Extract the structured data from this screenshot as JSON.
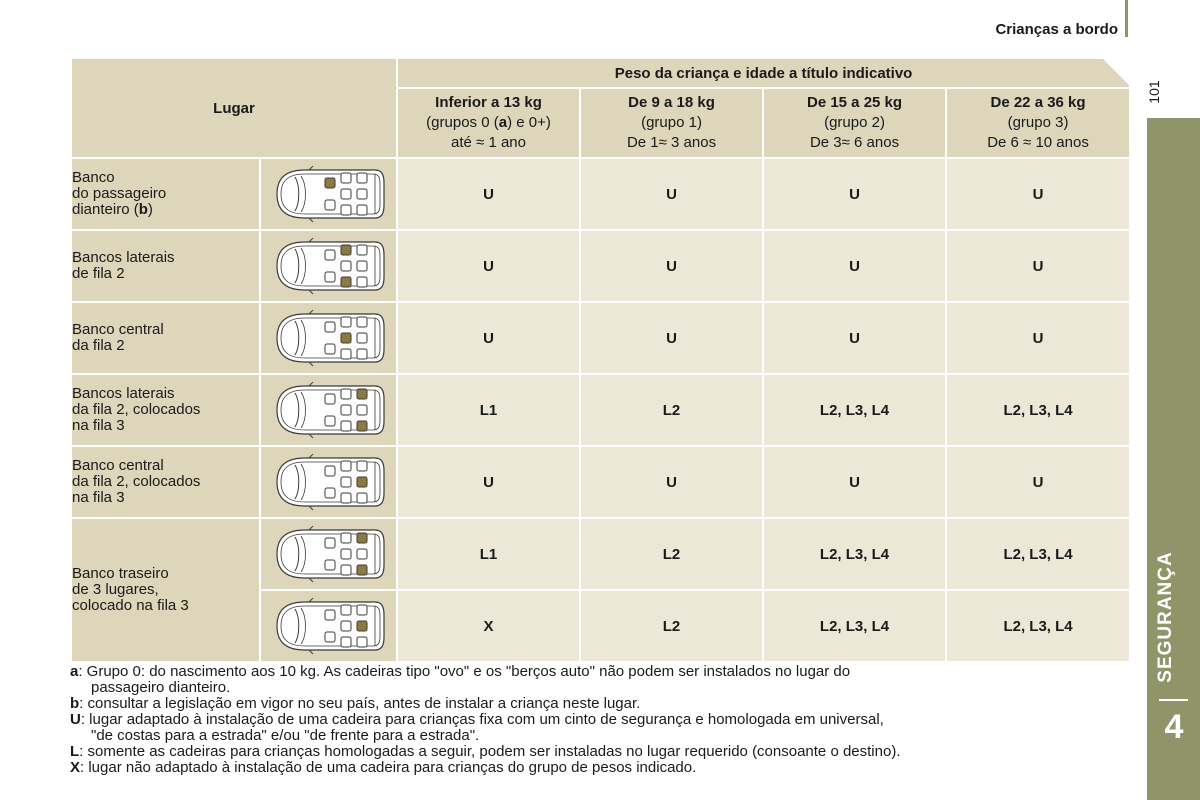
{
  "header": {
    "title": "Crianças a bordo",
    "page_number": "101"
  },
  "side_tab": {
    "section": "SEGURANÇA",
    "chapter": "4"
  },
  "colors": {
    "olive": "#8f9568",
    "header_beige": "#ddd6ba",
    "cell_beige": "#ece7d6",
    "seat_highlight": "#8d7a3e"
  },
  "table": {
    "lugar_header": "Lugar",
    "weight_header": "Peso da criança e idade a título indicativo",
    "columns": [
      {
        "title": "Inferior a 13 kg",
        "group_pre": "(grupos 0 (",
        "group_bold": "a",
        "group_post": ") e 0+)",
        "age": "até ≈ 1 ano"
      },
      {
        "title": "De 9 a 18 kg",
        "group": "(grupo 1)",
        "age": "De 1≈ 3 anos"
      },
      {
        "title": "De 15 a 25 kg",
        "group": "(grupo 2)",
        "age": "De 3≈ 6 anos"
      },
      {
        "title": "De 22 a 36 kg",
        "group": "(grupo 3)",
        "age": "De 6 ≈ 10 anos"
      }
    ],
    "rows": [
      {
        "label_lines": [
          "Banco",
          "do passageiro"
        ],
        "label_last_pre": "dianteiro (",
        "label_last_bold": "b",
        "label_last_post": ")",
        "values": [
          "U",
          "U",
          "U",
          "U"
        ]
      },
      {
        "label": "Bancos laterais\nde fila 2",
        "values": [
          "U",
          "U",
          "U",
          "U"
        ]
      },
      {
        "label": "Banco central\nda fila 2",
        "values": [
          "U",
          "U",
          "U",
          "U"
        ]
      },
      {
        "label": "Bancos laterais\nda fila 2, colocados\nna fila 3",
        "values": [
          "L1",
          "L2",
          "L2, L3, L4",
          "L2, L3, L4"
        ]
      },
      {
        "label": "Banco central\nda fila 2, colocados\nna fila 3",
        "values": [
          "U",
          "U",
          "U",
          "U"
        ]
      },
      {
        "label": "Banco traseiro\nde 3 lugares,\ncolocado na fila 3",
        "values_a": [
          "L1",
          "L2",
          "L2, L3, L4",
          "L2, L3, L4"
        ],
        "values_b": [
          "X",
          "L2",
          "L2, L3, L4",
          "L2, L3, L4"
        ]
      }
    ]
  },
  "notes": [
    {
      "key": "a",
      "text": ": Grupo 0: do nascimento aos 10 kg. As cadeiras tipo \"ovo\" e os \"berços auto\" não podem ser instalados no lugar do",
      "cont": "passageiro dianteiro."
    },
    {
      "key": "b",
      "text": ": consultar a legislação em vigor no seu país, antes de instalar a criança neste lugar."
    },
    {
      "key": "U",
      "text": ": lugar adaptado à instalação de uma cadeira para crianças fixa com um cinto de segurança e homologada em universal,",
      "cont": "\"de costas para a estrada\" e/ou \"de frente para a estrada\"."
    },
    {
      "key": "L",
      "text": ": somente as cadeiras para crianças homologadas a seguir, podem ser instaladas no lugar requerido (consoante o destino)."
    },
    {
      "key": "X",
      "text": ": lugar não adaptado à instalação de uma cadeira para crianças do grupo de pesos indicado."
    }
  ]
}
